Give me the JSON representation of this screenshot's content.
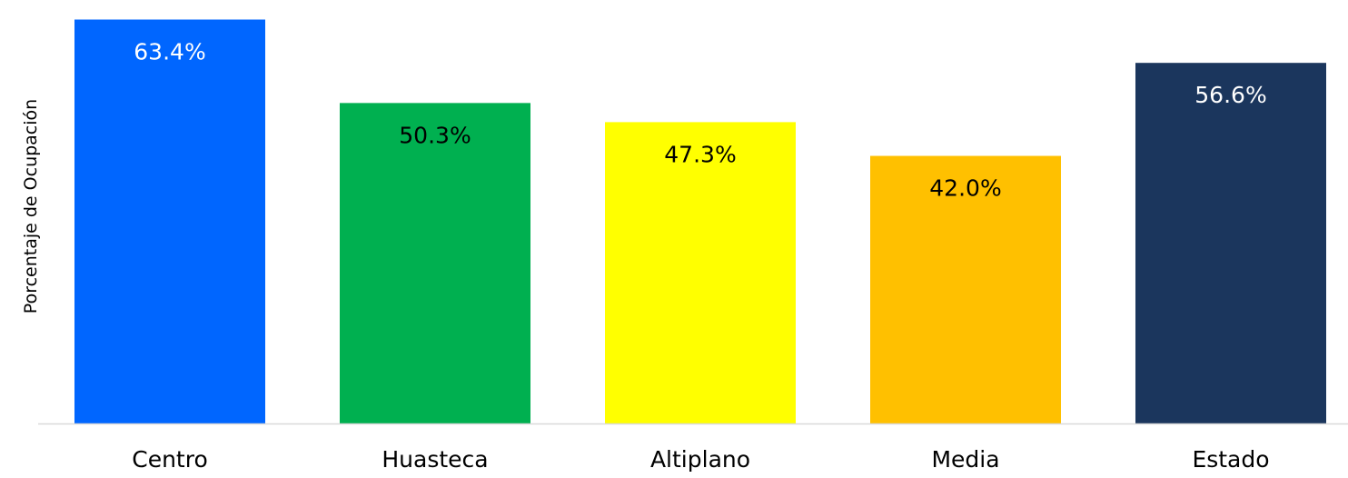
{
  "chart_data": {
    "type": "bar",
    "title": "",
    "xlabel": "",
    "ylabel": "Porcentaje de Ocupación",
    "categories": [
      "Centro",
      "Huasteca",
      "Altiplano",
      "Media",
      "Estado"
    ],
    "values": [
      63.4,
      50.3,
      47.3,
      42.0,
      56.6
    ],
    "value_labels": [
      "63.4%",
      "50.3%",
      "47.3%",
      "42.0%",
      "56.6%"
    ],
    "colors": [
      "#0066ff",
      "#00b050",
      "#ffff00",
      "#ffc000",
      "#1b365d"
    ],
    "label_colors": [
      "#ffffff",
      "#000000",
      "#000000",
      "#000000",
      "#ffffff"
    ],
    "ylim": [
      0,
      64.9
    ],
    "grid": false,
    "legend": "none"
  }
}
